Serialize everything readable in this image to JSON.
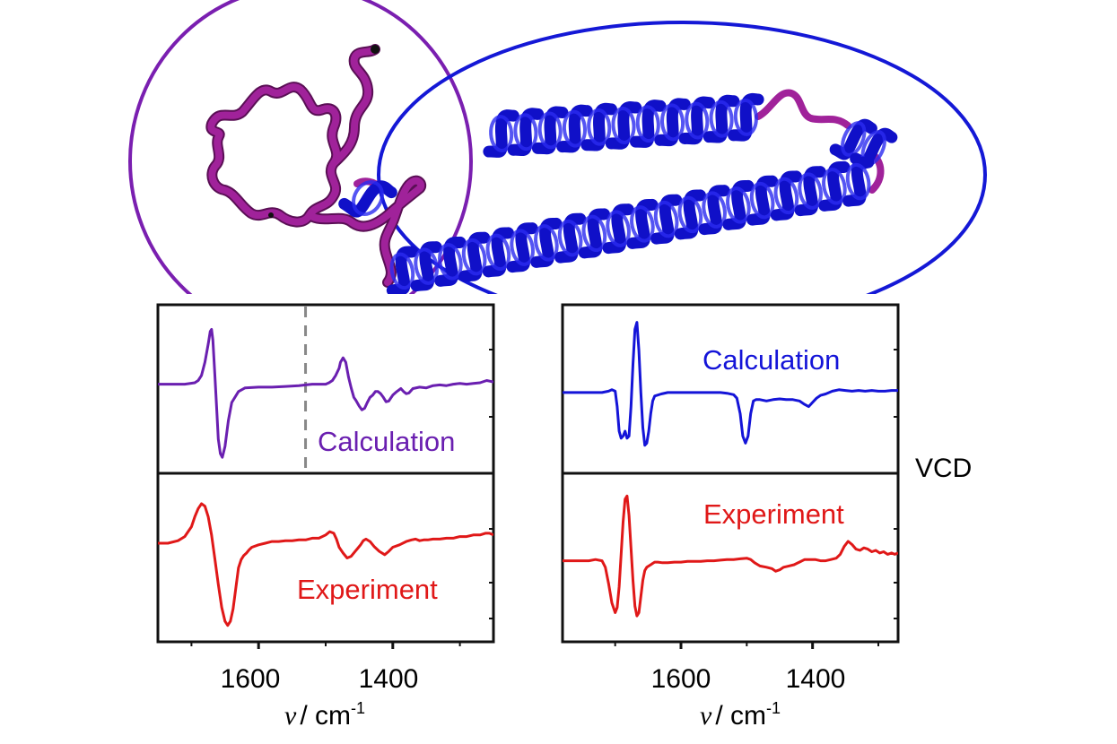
{
  "chart_data": [
    {
      "type": "line",
      "panel": "left",
      "xlabel_symbol": "ν",
      "xlabel_unit": "cm",
      "xlabel_exp": "-1",
      "xlim": [
        1750,
        1250
      ],
      "x_tick_labels": [
        "1600",
        "1400"
      ],
      "x_ticks": [
        1600,
        1400
      ],
      "y_side_label": "",
      "marker_x": 1530,
      "series": [
        {
          "name": "Calculation",
          "color": "#6a1fb0",
          "x": [
            1750,
            1710,
            1695,
            1690,
            1685,
            1680,
            1675,
            1672,
            1670,
            1668,
            1665,
            1662,
            1660,
            1657,
            1654,
            1650,
            1645,
            1640,
            1630,
            1620,
            1600,
            1580,
            1560,
            1540,
            1530,
            1520,
            1500,
            1495,
            1490,
            1485,
            1480,
            1478,
            1474,
            1470,
            1466,
            1462,
            1458,
            1455,
            1450,
            1446,
            1442,
            1438,
            1434,
            1430,
            1426,
            1422,
            1418,
            1414,
            1410,
            1406,
            1400,
            1394,
            1388,
            1384,
            1380,
            1376,
            1370,
            1360,
            1350,
            1340,
            1330,
            1320,
            1310,
            1300,
            1290,
            1280,
            1270,
            1260,
            1255,
            1250
          ],
          "y": [
            0.0,
            0.0,
            0.02,
            0.05,
            0.12,
            0.3,
            0.55,
            0.72,
            0.75,
            0.6,
            0.1,
            -0.4,
            -0.75,
            -0.95,
            -1.0,
            -0.85,
            -0.5,
            -0.25,
            -0.1,
            -0.05,
            -0.04,
            -0.04,
            -0.03,
            -0.02,
            -0.01,
            0.0,
            0.0,
            0.02,
            0.05,
            0.12,
            0.22,
            0.3,
            0.36,
            0.3,
            0.1,
            -0.05,
            -0.18,
            -0.22,
            -0.3,
            -0.35,
            -0.33,
            -0.25,
            -0.18,
            -0.15,
            -0.1,
            -0.1,
            -0.13,
            -0.18,
            -0.24,
            -0.23,
            -0.15,
            -0.1,
            -0.06,
            -0.1,
            -0.13,
            -0.12,
            -0.06,
            -0.04,
            -0.05,
            -0.02,
            -0.01,
            -0.02,
            0.0,
            0.01,
            0.0,
            0.01,
            0.02,
            0.05,
            0.04,
            0.03
          ]
        },
        {
          "name": "Experiment",
          "color": "#e01818",
          "x": [
            1750,
            1735,
            1720,
            1710,
            1700,
            1695,
            1690,
            1685,
            1680,
            1675,
            1670,
            1665,
            1660,
            1655,
            1650,
            1646,
            1642,
            1638,
            1634,
            1630,
            1626,
            1622,
            1618,
            1614,
            1610,
            1600,
            1590,
            1580,
            1570,
            1560,
            1550,
            1540,
            1530,
            1520,
            1510,
            1500,
            1494,
            1488,
            1484,
            1480,
            1474,
            1468,
            1462,
            1456,
            1452,
            1448,
            1444,
            1440,
            1434,
            1428,
            1420,
            1412,
            1406,
            1400,
            1390,
            1380,
            1372,
            1366,
            1360,
            1354,
            1348,
            1340,
            1330,
            1320,
            1310,
            1300,
            1290,
            1280,
            1270,
            1262,
            1256,
            1250
          ],
          "y": [
            0.0,
            0.0,
            0.03,
            0.08,
            0.2,
            0.32,
            0.42,
            0.48,
            0.45,
            0.32,
            0.1,
            -0.2,
            -0.5,
            -0.78,
            -0.95,
            -1.0,
            -0.95,
            -0.8,
            -0.55,
            -0.3,
            -0.2,
            -0.15,
            -0.12,
            -0.08,
            -0.05,
            -0.02,
            0.0,
            0.02,
            0.02,
            0.03,
            0.03,
            0.04,
            0.04,
            0.06,
            0.06,
            0.1,
            0.14,
            0.12,
            0.05,
            -0.05,
            -0.12,
            -0.18,
            -0.16,
            -0.1,
            -0.06,
            -0.02,
            0.03,
            0.05,
            0.02,
            -0.04,
            -0.1,
            -0.14,
            -0.1,
            -0.05,
            -0.02,
            0.02,
            0.04,
            0.05,
            0.03,
            0.04,
            0.04,
            0.05,
            0.05,
            0.06,
            0.06,
            0.08,
            0.08,
            0.1,
            0.1,
            0.12,
            0.12,
            0.1
          ]
        }
      ]
    },
    {
      "type": "line",
      "panel": "right",
      "xlabel_symbol": "ν",
      "xlabel_unit": "cm",
      "xlabel_exp": "-1",
      "xlim": [
        1780,
        1270
      ],
      "x_tick_labels": [
        "1600",
        "1400"
      ],
      "x_ticks": [
        1600,
        1400
      ],
      "y_side_label": "VCD",
      "series": [
        {
          "name": "Calculation",
          "color": "#1414d8",
          "x": [
            1780,
            1760,
            1740,
            1720,
            1710,
            1705,
            1700,
            1697,
            1694,
            1691,
            1688,
            1685,
            1682,
            1679,
            1676,
            1673,
            1670,
            1667,
            1664,
            1661,
            1658,
            1655,
            1652,
            1649,
            1646,
            1643,
            1640,
            1630,
            1620,
            1600,
            1580,
            1560,
            1540,
            1530,
            1520,
            1515,
            1510,
            1506,
            1502,
            1498,
            1494,
            1490,
            1486,
            1480,
            1470,
            1460,
            1450,
            1440,
            1430,
            1420,
            1412,
            1406,
            1400,
            1394,
            1388,
            1380,
            1370,
            1360,
            1350,
            1340,
            1330,
            1320,
            1310,
            1300,
            1290,
            1280,
            1270
          ],
          "y": [
            0.0,
            0.0,
            0.0,
            0.0,
            0.02,
            0.04,
            0.02,
            -0.2,
            -0.55,
            -0.65,
            -0.62,
            -0.55,
            -0.65,
            -0.62,
            -0.2,
            0.4,
            0.9,
            1.0,
            0.6,
            0.0,
            -0.5,
            -0.75,
            -0.72,
            -0.55,
            -0.3,
            -0.12,
            -0.05,
            -0.02,
            0.0,
            0.0,
            0.0,
            0.0,
            0.0,
            -0.01,
            -0.03,
            -0.08,
            -0.3,
            -0.62,
            -0.72,
            -0.62,
            -0.3,
            -0.12,
            -0.1,
            -0.1,
            -0.12,
            -0.1,
            -0.09,
            -0.1,
            -0.1,
            -0.12,
            -0.17,
            -0.2,
            -0.14,
            -0.08,
            -0.04,
            -0.02,
            0.02,
            0.04,
            0.03,
            0.02,
            0.03,
            0.02,
            0.03,
            0.02,
            0.02,
            0.03,
            0.03
          ]
        },
        {
          "name": "Experiment",
          "color": "#e01818",
          "x": [
            1780,
            1760,
            1740,
            1730,
            1720,
            1715,
            1710,
            1705,
            1700,
            1697,
            1694,
            1691,
            1688,
            1685,
            1682,
            1679,
            1676,
            1673,
            1670,
            1667,
            1664,
            1661,
            1658,
            1655,
            1652,
            1649,
            1646,
            1643,
            1640,
            1635,
            1628,
            1620,
            1610,
            1600,
            1590,
            1580,
            1570,
            1560,
            1550,
            1540,
            1530,
            1520,
            1510,
            1500,
            1494,
            1488,
            1480,
            1470,
            1462,
            1456,
            1450,
            1444,
            1436,
            1428,
            1420,
            1412,
            1404,
            1396,
            1388,
            1380,
            1372,
            1364,
            1358,
            1352,
            1346,
            1340,
            1334,
            1328,
            1322,
            1316,
            1310,
            1304,
            1298,
            1292,
            1286,
            1280,
            1275,
            1270
          ],
          "y": [
            0.0,
            0.0,
            0.0,
            0.02,
            0.0,
            -0.1,
            -0.35,
            -0.65,
            -0.8,
            -0.72,
            -0.4,
            0.1,
            0.6,
            0.95,
            1.0,
            0.7,
            0.2,
            -0.3,
            -0.7,
            -0.85,
            -0.8,
            -0.55,
            -0.3,
            -0.15,
            -0.1,
            -0.08,
            -0.06,
            -0.04,
            -0.02,
            -0.02,
            -0.03,
            -0.03,
            -0.02,
            -0.02,
            -0.01,
            -0.01,
            -0.01,
            0.0,
            0.0,
            0.01,
            0.02,
            0.02,
            0.03,
            0.04,
            0.02,
            -0.03,
            -0.08,
            -0.1,
            -0.12,
            -0.16,
            -0.14,
            -0.1,
            -0.08,
            -0.06,
            -0.02,
            0.02,
            0.02,
            0.02,
            0.0,
            0.0,
            0.02,
            0.04,
            0.1,
            0.22,
            0.3,
            0.25,
            0.18,
            0.16,
            0.2,
            0.18,
            0.14,
            0.16,
            0.12,
            0.14,
            0.1,
            0.12,
            0.1,
            0.12
          ]
        }
      ]
    }
  ],
  "structure": {
    "left_circle_color": "#7a1fb0",
    "right_ellipse_color": "#1418d6",
    "coil_color": "#a0229a",
    "helix_color": "#1010c8"
  }
}
